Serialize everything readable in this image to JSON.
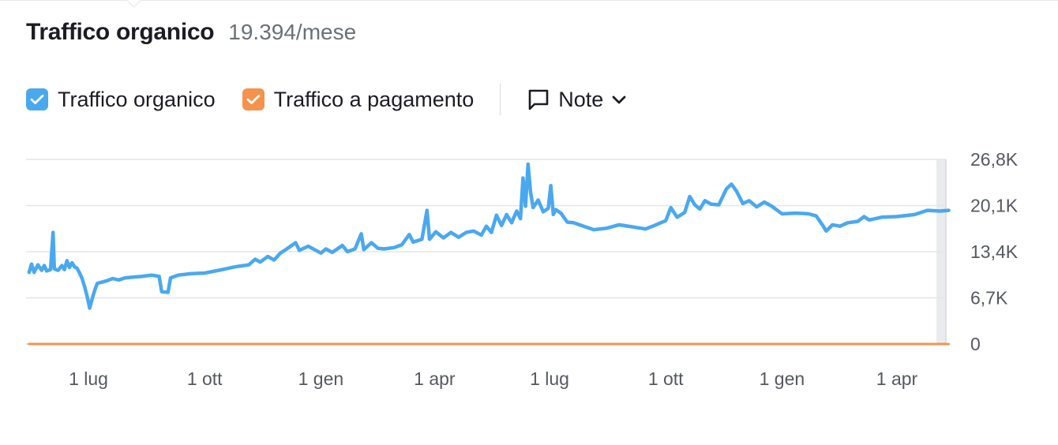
{
  "header": {
    "title": "Traffico organico",
    "value": "19.394/mese"
  },
  "legend": {
    "items": [
      {
        "label": "Traffico organico",
        "color": "#4aa8ef",
        "checked": true
      },
      {
        "label": "Traffico a pagamento",
        "color": "#f5924d",
        "checked": true
      }
    ],
    "notes_label": "Note"
  },
  "icons": {
    "checkmark": "check-icon",
    "notes": "comment-icon",
    "dropdown": "chevron-down-icon"
  },
  "chart_data": {
    "type": "line",
    "title": "",
    "xlabel": "",
    "ylabel": "",
    "ylim": [
      0,
      26800
    ],
    "y_ticks": [
      0,
      6700,
      13400,
      20100,
      26800
    ],
    "y_tick_labels": [
      "0",
      "6,7K",
      "13,4K",
      "20,1K",
      "26,8K"
    ],
    "x_tick_labels": [
      "1 lug",
      "1 ott",
      "1 gen",
      "1 apr",
      "1 lug",
      "1 ott",
      "1 gen",
      "1 apr"
    ],
    "x_tick_dates": [
      "2022-07-01",
      "2022-10-01",
      "2023-01-01",
      "2023-04-01",
      "2023-07-01",
      "2023-10-01",
      "2024-01-01",
      "2024-04-01"
    ],
    "grid": true,
    "axis_side": "right",
    "series": [
      {
        "name": "Traffico organico",
        "color": "#4aa8ef",
        "points": [
          [
            "2022-05-15",
            10400
          ],
          [
            "2022-05-17",
            11600
          ],
          [
            "2022-05-19",
            10400
          ],
          [
            "2022-05-22",
            11500
          ],
          [
            "2022-05-25",
            10700
          ],
          [
            "2022-05-27",
            11400
          ],
          [
            "2022-05-29",
            10600
          ],
          [
            "2022-06-01",
            10800
          ],
          [
            "2022-06-03",
            16200
          ],
          [
            "2022-06-04",
            10900
          ],
          [
            "2022-06-07",
            10700
          ],
          [
            "2022-06-10",
            11400
          ],
          [
            "2022-06-12",
            10800
          ],
          [
            "2022-06-14",
            12100
          ],
          [
            "2022-06-16",
            11100
          ],
          [
            "2022-06-18",
            11800
          ],
          [
            "2022-06-20",
            11200
          ],
          [
            "2022-06-22",
            11000
          ],
          [
            "2022-06-24",
            10300
          ],
          [
            "2022-06-26",
            9500
          ],
          [
            "2022-06-28",
            8300
          ],
          [
            "2022-06-30",
            6900
          ],
          [
            "2022-07-02",
            5200
          ],
          [
            "2022-07-04",
            6600
          ],
          [
            "2022-07-06",
            7800
          ],
          [
            "2022-07-08",
            8800
          ],
          [
            "2022-07-12",
            9000
          ],
          [
            "2022-07-16",
            9200
          ],
          [
            "2022-07-20",
            9500
          ],
          [
            "2022-07-25",
            9300
          ],
          [
            "2022-07-30",
            9600
          ],
          [
            "2022-08-05",
            9700
          ],
          [
            "2022-08-12",
            9800
          ],
          [
            "2022-08-20",
            10000
          ],
          [
            "2022-08-26",
            9800
          ],
          [
            "2022-08-28",
            7600
          ],
          [
            "2022-09-02",
            7500
          ],
          [
            "2022-09-04",
            9600
          ],
          [
            "2022-09-10",
            10000
          ],
          [
            "2022-09-20",
            10200
          ],
          [
            "2022-10-01",
            10300
          ],
          [
            "2022-10-15",
            10800
          ],
          [
            "2022-10-25",
            11200
          ],
          [
            "2022-11-05",
            11500
          ],
          [
            "2022-11-10",
            12300
          ],
          [
            "2022-11-14",
            11900
          ],
          [
            "2022-11-20",
            12700
          ],
          [
            "2022-11-25",
            12200
          ],
          [
            "2022-11-30",
            13200
          ],
          [
            "2022-12-05",
            13800
          ],
          [
            "2022-12-12",
            14700
          ],
          [
            "2022-12-15",
            13600
          ],
          [
            "2022-12-22",
            14200
          ],
          [
            "2022-12-28",
            13600
          ],
          [
            "2023-01-01",
            13200
          ],
          [
            "2023-01-05",
            13800
          ],
          [
            "2023-01-10",
            13300
          ],
          [
            "2023-01-18",
            14300
          ],
          [
            "2023-01-22",
            13400
          ],
          [
            "2023-01-28",
            13800
          ],
          [
            "2023-02-02",
            16000
          ],
          [
            "2023-02-04",
            13700
          ],
          [
            "2023-02-10",
            14700
          ],
          [
            "2023-02-15",
            13900
          ],
          [
            "2023-02-20",
            13800
          ],
          [
            "2023-02-28",
            14000
          ],
          [
            "2023-03-06",
            14400
          ],
          [
            "2023-03-12",
            15900
          ],
          [
            "2023-03-15",
            14800
          ],
          [
            "2023-03-22",
            15200
          ],
          [
            "2023-03-26",
            19400
          ],
          [
            "2023-03-28",
            15200
          ],
          [
            "2023-04-02",
            16300
          ],
          [
            "2023-04-08",
            15400
          ],
          [
            "2023-04-14",
            16200
          ],
          [
            "2023-04-20",
            15500
          ],
          [
            "2023-04-26",
            16200
          ],
          [
            "2023-05-02",
            16400
          ],
          [
            "2023-05-08",
            15800
          ],
          [
            "2023-05-12",
            17100
          ],
          [
            "2023-05-16",
            16200
          ],
          [
            "2023-05-20",
            18700
          ],
          [
            "2023-05-24",
            17200
          ],
          [
            "2023-05-28",
            18800
          ],
          [
            "2023-06-01",
            17600
          ],
          [
            "2023-06-05",
            19300
          ],
          [
            "2023-06-08",
            18200
          ],
          [
            "2023-06-10",
            24100
          ],
          [
            "2023-06-12",
            20000
          ],
          [
            "2023-06-14",
            26100
          ],
          [
            "2023-06-16",
            22000
          ],
          [
            "2023-06-18",
            19800
          ],
          [
            "2023-06-22",
            20900
          ],
          [
            "2023-06-26",
            19200
          ],
          [
            "2023-06-30",
            19700
          ],
          [
            "2023-07-02",
            23000
          ],
          [
            "2023-07-04",
            18800
          ],
          [
            "2023-07-06",
            19500
          ],
          [
            "2023-07-10",
            19000
          ],
          [
            "2023-07-15",
            17700
          ],
          [
            "2023-07-20",
            17600
          ],
          [
            "2023-07-28",
            17100
          ],
          [
            "2023-08-05",
            16600
          ],
          [
            "2023-08-15",
            16800
          ],
          [
            "2023-08-25",
            17300
          ],
          [
            "2023-09-05",
            17000
          ],
          [
            "2023-09-15",
            16700
          ],
          [
            "2023-09-22",
            17200
          ],
          [
            "2023-10-01",
            17900
          ],
          [
            "2023-10-05",
            19800
          ],
          [
            "2023-10-10",
            18400
          ],
          [
            "2023-10-16",
            19100
          ],
          [
            "2023-10-20",
            21400
          ],
          [
            "2023-10-24",
            20200
          ],
          [
            "2023-10-28",
            19600
          ],
          [
            "2023-11-01",
            20800
          ],
          [
            "2023-11-06",
            20300
          ],
          [
            "2023-11-12",
            20200
          ],
          [
            "2023-11-18",
            22500
          ],
          [
            "2023-11-22",
            23200
          ],
          [
            "2023-11-26",
            22200
          ],
          [
            "2023-12-01",
            20400
          ],
          [
            "2023-12-06",
            20800
          ],
          [
            "2023-12-12",
            19900
          ],
          [
            "2023-12-18",
            20600
          ],
          [
            "2023-12-24",
            20000
          ],
          [
            "2024-01-01",
            18900
          ],
          [
            "2024-01-12",
            19000
          ],
          [
            "2024-01-22",
            18900
          ],
          [
            "2024-01-28",
            18600
          ],
          [
            "2024-02-02",
            17300
          ],
          [
            "2024-02-05",
            16400
          ],
          [
            "2024-02-10",
            17300
          ],
          [
            "2024-02-16",
            17100
          ],
          [
            "2024-02-22",
            17600
          ],
          [
            "2024-03-01",
            17800
          ],
          [
            "2024-03-06",
            18500
          ],
          [
            "2024-03-10",
            18000
          ],
          [
            "2024-03-20",
            18400
          ],
          [
            "2024-04-01",
            18500
          ],
          [
            "2024-04-15",
            18800
          ],
          [
            "2024-04-25",
            19400
          ],
          [
            "2024-05-05",
            19300
          ],
          [
            "2024-05-12",
            19400
          ]
        ]
      },
      {
        "name": "Traffico a pagamento",
        "color": "#f5924d",
        "points": [
          [
            "2022-05-15",
            0
          ],
          [
            "2024-05-12",
            0
          ]
        ]
      }
    ]
  }
}
